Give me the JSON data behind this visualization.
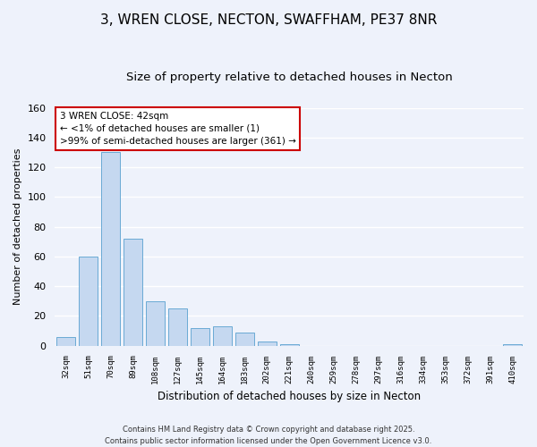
{
  "title": "3, WREN CLOSE, NECTON, SWAFFHAM, PE37 8NR",
  "subtitle": "Size of property relative to detached houses in Necton",
  "bar_values": [
    6,
    60,
    130,
    72,
    30,
    25,
    12,
    13,
    9,
    3,
    1,
    0,
    0,
    0,
    0,
    0,
    0,
    0,
    0,
    0,
    1
  ],
  "x_labels": [
    "32sqm",
    "51sqm",
    "70sqm",
    "89sqm",
    "108sqm",
    "127sqm",
    "145sqm",
    "164sqm",
    "183sqm",
    "202sqm",
    "221sqm",
    "240sqm",
    "259sqm",
    "278sqm",
    "297sqm",
    "316sqm",
    "334sqm",
    "353sqm",
    "372sqm",
    "391sqm",
    "410sqm"
  ],
  "bar_color": "#c5d8f0",
  "bar_edge_color": "#6aaad4",
  "ylabel": "Number of detached properties",
  "xlabel": "Distribution of detached houses by size in Necton",
  "ylim": [
    0,
    160
  ],
  "yticks": [
    0,
    20,
    40,
    60,
    80,
    100,
    120,
    140,
    160
  ],
  "annotation_title": "3 WREN CLOSE: 42sqm",
  "annotation_line1": "← <1% of detached houses are smaller (1)",
  "annotation_line2": ">99% of semi-detached houses are larger (361) →",
  "annotation_box_color": "#ffffff",
  "annotation_box_edge": "#cc0000",
  "footer_line1": "Contains HM Land Registry data © Crown copyright and database right 2025.",
  "footer_line2": "Contains public sector information licensed under the Open Government Licence v3.0.",
  "background_color": "#eef2fb",
  "grid_color": "#ffffff",
  "title_fontsize": 11,
  "subtitle_fontsize": 9.5
}
